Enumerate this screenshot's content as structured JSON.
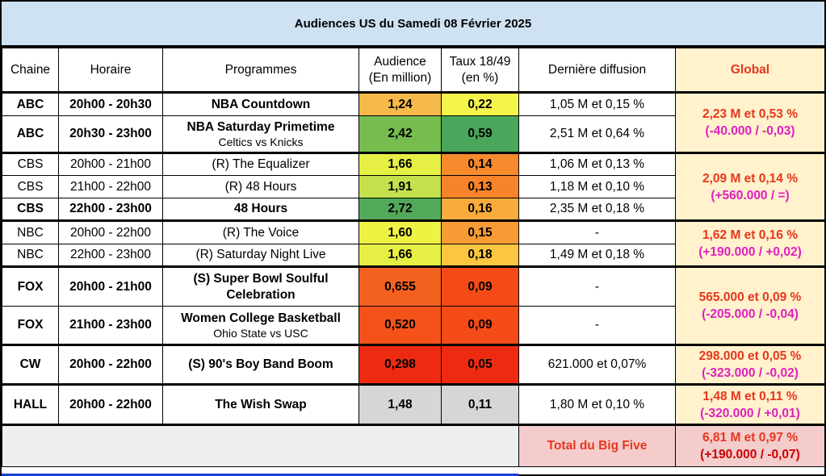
{
  "title": "Audiences US du Samedi 08 Février 2025",
  "headers": {
    "chaine": "Chaine",
    "horaire": "Horaire",
    "programmes": "Programmes",
    "audience_l1": "Audience",
    "audience_l2": "(En million)",
    "taux_l1": "Taux 18/49",
    "taux_l2": "(en %)",
    "derniere": "Dernière diffusion",
    "global": "Global"
  },
  "rows": [
    {
      "chaine": "ABC",
      "horaire": "20h00 - 20h30",
      "programme": "NBA Countdown",
      "sub": "",
      "audience": "1,24",
      "taux": "0,22",
      "derniere": "1,05 M et 0,15 %",
      "aud_color": "#f6b94a",
      "taux_color": "#f4f44a"
    },
    {
      "chaine": "ABC",
      "horaire": "20h30 - 23h00",
      "programme": "NBA Saturday Primetime",
      "sub": "Celtics vs Knicks",
      "audience": "2,42",
      "taux": "0,59",
      "derniere": "2,51 M et 0,64 %",
      "aud_color": "#76bc4f",
      "taux_color": "#4aa65a"
    },
    {
      "chaine": "CBS",
      "horaire": "20h00 - 21h00",
      "programme": "(R) The Equalizer",
      "sub": "",
      "audience": "1,66",
      "taux": "0,14",
      "derniere": "1,06 M et 0,13 %",
      "aud_color": "#e6ef44",
      "taux_color": "#f78a2c"
    },
    {
      "chaine": "CBS",
      "horaire": "21h00 - 22h00",
      "programme": "(R) 48 Hours",
      "sub": "",
      "audience": "1,91",
      "taux": "0,13",
      "derniere": "1,18 M et 0,10 %",
      "aud_color": "#c4e04d",
      "taux_color": "#f7842a"
    },
    {
      "chaine": "CBS",
      "horaire": "22h00 - 23h00",
      "programme": "48 Hours",
      "sub": "",
      "audience": "2,72",
      "taux": "0,16",
      "derniere": "2,35 M et 0,18 %",
      "aud_color": "#52a95a",
      "taux_color": "#f9ab3c"
    },
    {
      "chaine": "NBC",
      "horaire": "20h00 - 22h00",
      "programme": "(R) The Voice",
      "sub": "",
      "audience": "1,60",
      "taux": "0,15",
      "derniere": "-",
      "aud_color": "#eef242",
      "taux_color": "#f79b35"
    },
    {
      "chaine": "NBC",
      "horaire": "22h00 - 23h00",
      "programme": "(R) Saturday Night Live",
      "sub": "",
      "audience": "1,66",
      "taux": "0,18",
      "derniere": "1,49 M et 0,18 %",
      "aud_color": "#e6ef44",
      "taux_color": "#fbc640"
    },
    {
      "chaine": "FOX",
      "horaire": "20h00 - 21h00",
      "programme": "(S) Super Bowl Soulful",
      "programme2": "Celebration",
      "sub": "",
      "audience": "0,655",
      "taux": "0,09",
      "derniere": "-",
      "aud_color": "#f4611f",
      "taux_color": "#f54b16"
    },
    {
      "chaine": "FOX",
      "horaire": "21h00 - 23h00",
      "programme": "Women College Basketball",
      "sub": "Ohio State vs USC",
      "audience": "0,520",
      "taux": "0,09",
      "derniere": "-",
      "aud_color": "#f4521a",
      "taux_color": "#f54b16"
    },
    {
      "chaine": "CW",
      "horaire": "20h00 - 22h00",
      "programme": "(S) 90's Boy Band Boom",
      "sub": "",
      "audience": "0,298",
      "taux": "0,05",
      "derniere": "621.000 et 0,07%",
      "aud_color": "#ee2a10",
      "taux_color": "#ee2a10"
    },
    {
      "chaine": "HALL",
      "horaire": "20h00 - 22h00",
      "programme": "The Wish Swap",
      "sub": "",
      "audience": "1,48",
      "taux": "0,11",
      "derniere": "1,80 M et 0,10 %",
      "aud_color": "#d6d6d6",
      "taux_color": "#d6d6d6"
    }
  ],
  "global": [
    {
      "top": "2,23 M et 0,53 %",
      "bot": "(-40.000 / -0,03)"
    },
    {
      "top": "2,09 M et 0,14 %",
      "bot": "(+560.000 / =)"
    },
    {
      "top": "1,62 M et 0,16 %",
      "bot": "(+190.000 / +0,02)"
    },
    {
      "top": "565.000 et 0,09 %",
      "bot": "(-205.000 / -0,04)"
    },
    {
      "top": "298.000 et 0,05 %",
      "bot": "(-323.000 / -0,02)"
    },
    {
      "top": "1,48 M et 0,11 %",
      "bot": "(-320.000 / +0,01)"
    }
  ],
  "total": {
    "label": "Total du Big Five",
    "top": "6,81 M et 0,97 %",
    "bot": "(+190.000 / -0,07)"
  }
}
